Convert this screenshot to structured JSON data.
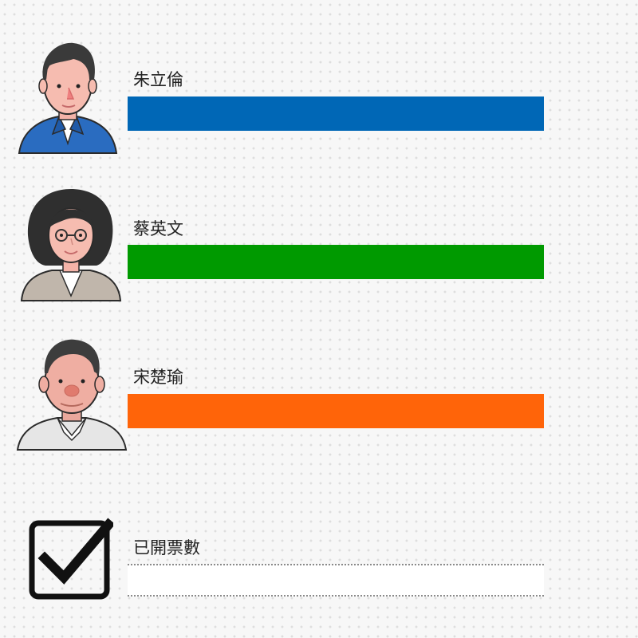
{
  "chart_data": {
    "type": "bar",
    "orientation": "horizontal",
    "categories": [
      "朱立倫",
      "蔡英文",
      "宋楚瑜"
    ],
    "values": [
      null,
      null,
      null
    ],
    "colors": [
      "#0067b6",
      "#009a00",
      "#ff6409"
    ]
  },
  "candidates": [
    {
      "name": "朱立倫",
      "color": "#0067b6",
      "avatar_icon": "male-avatar-blue-shirt-icon"
    },
    {
      "name": "蔡英文",
      "color": "#009a00",
      "avatar_icon": "female-avatar-glasses-icon"
    },
    {
      "name": "宋楚瑜",
      "color": "#ff6409",
      "avatar_icon": "male-avatar-white-shirt-icon"
    }
  ],
  "ballots": {
    "label": "已開票數",
    "icon": "checkbox-check-icon"
  }
}
